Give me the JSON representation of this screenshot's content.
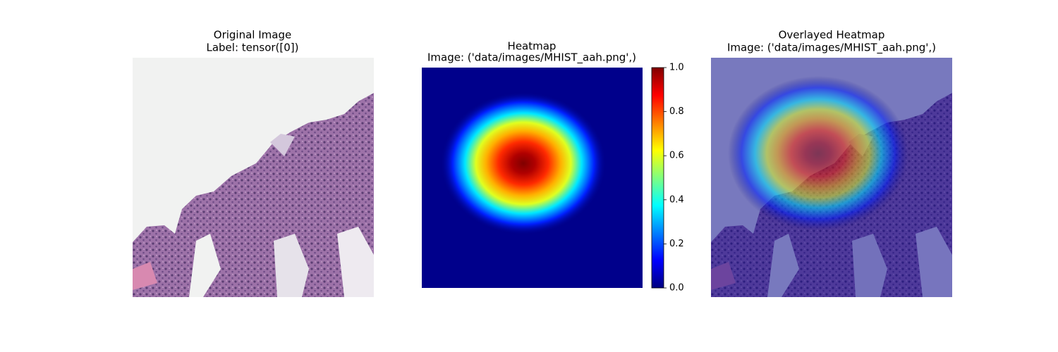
{
  "panels": [
    {
      "title": "Original Image",
      "subtitle": "Label: tensor([0])"
    },
    {
      "title": "Heatmap",
      "subtitle": "Image: ('data/images/MHIST_aah.png',)",
      "colorbar": {
        "lim": [
          0,
          1
        ],
        "ticks": [
          {
            "value": 0,
            "label": "0.0"
          },
          {
            "value": 0.2,
            "label": "0.2"
          },
          {
            "value": 0.4,
            "label": "0.4"
          },
          {
            "value": 0.6,
            "label": "0.6"
          },
          {
            "value": 0.8,
            "label": "0.8"
          },
          {
            "value": 1,
            "label": "1.0"
          }
        ]
      }
    },
    {
      "title": "Overlayed Heatmap",
      "subtitle": "Image: ('data/images/MHIST_aah.png',)"
    }
  ]
}
